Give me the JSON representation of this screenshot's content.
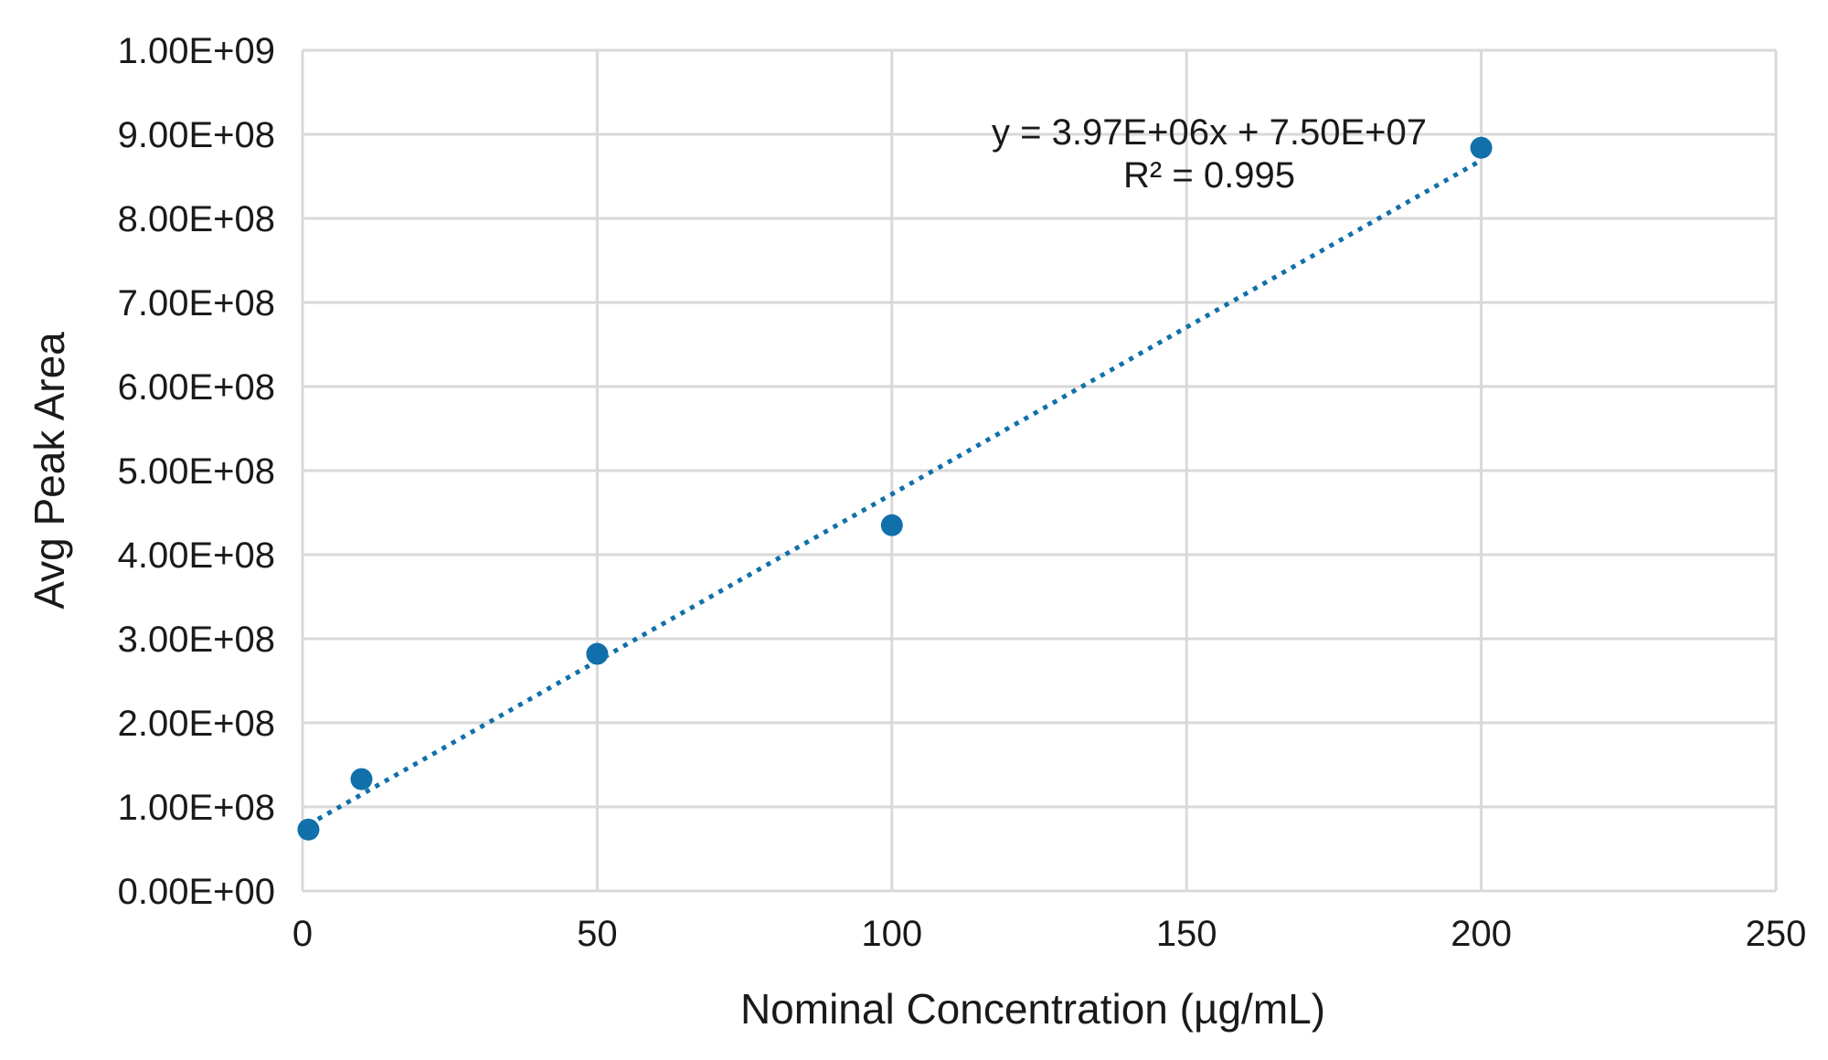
{
  "chart_data": {
    "type": "scatter",
    "title": "",
    "xlabel": "Nominal Concentration (µg/mL)",
    "ylabel": "Avg Peak Area",
    "xlim": [
      0,
      250
    ],
    "ylim": [
      0,
      1000000000
    ],
    "x_ticks": [
      0,
      50,
      100,
      150,
      200,
      250
    ],
    "x_tick_labels": [
      "0",
      "50",
      "100",
      "150",
      "200",
      "250"
    ],
    "y_ticks": [
      0,
      100000000,
      200000000,
      300000000,
      400000000,
      500000000,
      600000000,
      700000000,
      800000000,
      900000000,
      1000000000
    ],
    "y_tick_labels": [
      "0.00E+00",
      "1.00E+08",
      "2.00E+08",
      "3.00E+08",
      "4.00E+08",
      "5.00E+08",
      "6.00E+08",
      "7.00E+08",
      "8.00E+08",
      "9.00E+08",
      "1.00E+09"
    ],
    "grid": true,
    "series": [
      {
        "points": [
          {
            "x": 1,
            "y": 73000000
          },
          {
            "x": 10,
            "y": 133000000
          },
          {
            "x": 50,
            "y": 282000000
          },
          {
            "x": 100,
            "y": 435000000
          },
          {
            "x": 200,
            "y": 884000000
          }
        ],
        "color": "#1170aa"
      }
    ],
    "trendline": {
      "style": "dotted",
      "slope": 3970000,
      "intercept": 75000000,
      "x_range": [
        1,
        200
      ],
      "color": "#1170aa",
      "equation_label": "y = 3.97E+06x + 7.50E+07",
      "r2_label": "R² = 0.995"
    }
  }
}
